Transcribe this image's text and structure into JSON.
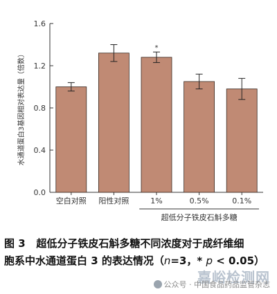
{
  "chart_data": {
    "type": "bar",
    "ylabel": "水通道蛋白3基因相对表达量（倍数）",
    "ylim": [
      0,
      1.6
    ],
    "yticks": [
      "0.0",
      "0.4",
      "0.8",
      "1.2",
      "1.6"
    ],
    "categories": [
      "空白对照",
      "阳性对照",
      "1%",
      "0.5%",
      "0.1%"
    ],
    "values": [
      1.0,
      1.32,
      1.28,
      1.05,
      0.98
    ],
    "errors": [
      0.04,
      0.08,
      0.05,
      0.07,
      0.1
    ],
    "significance": [
      "",
      "",
      "*",
      "",
      ""
    ],
    "group_label": "超低分子铁皮石斛多糖",
    "bar_color": "#c08a74",
    "bar_stroke": "#3a2a22"
  },
  "caption": {
    "fig_no": "图 3",
    "line1": "超低分子铁皮石斛多糖不同浓度对于成纤维细",
    "line2_a": "胞系中水通道蛋白 3 的表达情况（",
    "n_sym": "n",
    "line2_b": "=3，* ",
    "p_sym": "p",
    "line2_c": " < 0.05）"
  },
  "watermark": {
    "logo": "嘉峪检测网",
    "account": "公众号 · 中国食品药品监管杂志"
  }
}
